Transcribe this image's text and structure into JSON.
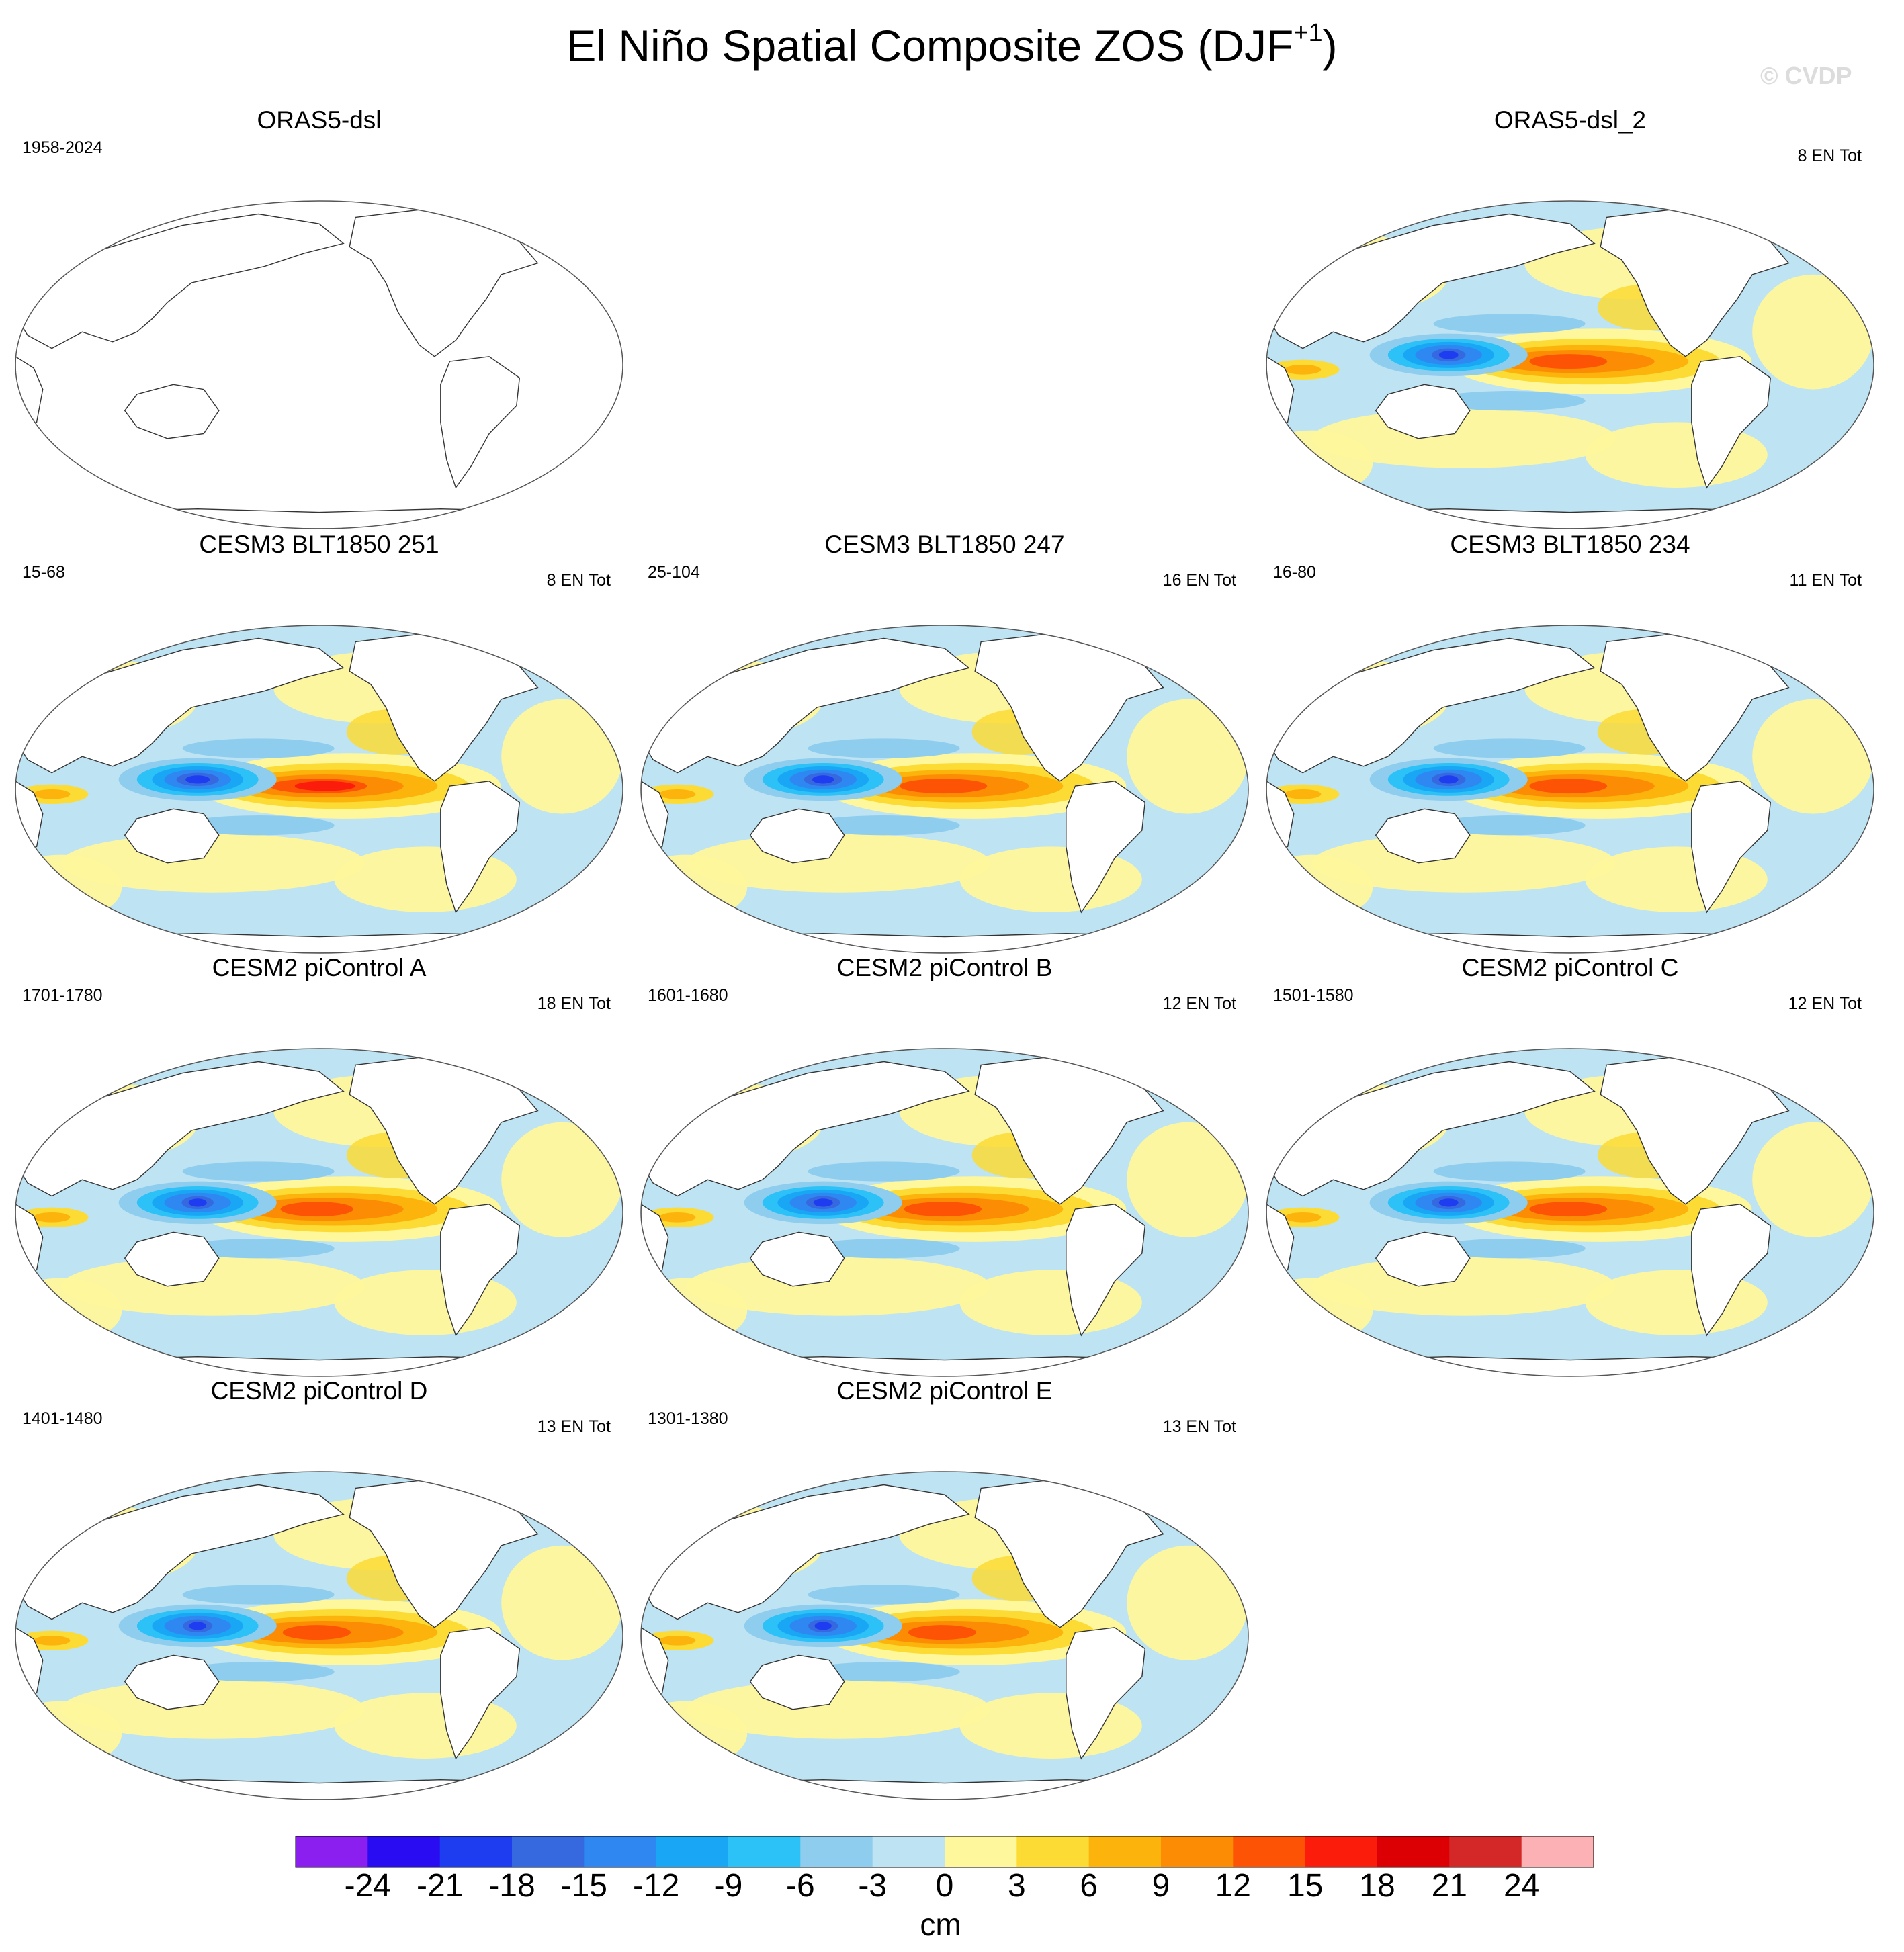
{
  "figure": {
    "title_main": "El Niño Spatial Composite ZOS (DJF",
    "title_sup": "+1",
    "title_close": ")",
    "watermark": "© CVDP"
  },
  "panels": [
    {
      "title": "ORAS5-dsl",
      "years": "1958-2024",
      "count": "",
      "has_data": false,
      "strength": 0
    },
    {
      "title": "ORAS5-dsl_2",
      "years": "",
      "count": "8 EN Tot",
      "has_data": true,
      "strength": 0.8
    },
    {
      "title": "CESM3 BLT1850 251",
      "years": "15-68",
      "count": "8 EN Tot",
      "has_data": true,
      "strength": 1.0
    },
    {
      "title": "CESM3 BLT1850 247",
      "years": "25-104",
      "count": "16 EN Tot",
      "has_data": true,
      "strength": 0.9
    },
    {
      "title": "CESM3 BLT1850 234",
      "years": "16-80",
      "count": "11 EN Tot",
      "has_data": true,
      "strength": 0.8
    },
    {
      "title": "CESM2 piControl A",
      "years": "1701-1780",
      "count": "18 EN Tot",
      "has_data": true,
      "strength": 0.75
    },
    {
      "title": "CESM2 piControl B",
      "years": "1601-1680",
      "count": "12 EN Tot",
      "has_data": true,
      "strength": 0.8
    },
    {
      "title": "CESM2 piControl C",
      "years": "1501-1580",
      "count": "12 EN Tot",
      "has_data": true,
      "strength": 0.8
    },
    {
      "title": "CESM2 piControl D",
      "years": "1401-1480",
      "count": "13 EN Tot",
      "has_data": true,
      "strength": 0.7
    },
    {
      "title": "CESM2 piControl E",
      "years": "1301-1380",
      "count": "13 EN Tot",
      "has_data": true,
      "strength": 0.7
    }
  ],
  "colorbar": {
    "units": "cm",
    "labels": [
      "-24",
      "-21",
      "-18",
      "-15",
      "-12",
      "-9",
      "-6",
      "-3",
      "0",
      "3",
      "6",
      "9",
      "12",
      "15",
      "18",
      "21",
      "24"
    ],
    "colors": [
      "#8a1ff0",
      "#2a0cf2",
      "#1e3df0",
      "#3669e0",
      "#2f87f2",
      "#19a6f5",
      "#2cc1f7",
      "#8fcdee",
      "#bee3f3",
      "#fff79b",
      "#fcdb35",
      "#fcb40c",
      "#fc8c04",
      "#fc5404",
      "#fc1c0c",
      "#dc0004",
      "#d42828",
      "#fcb2b4"
    ]
  }
}
